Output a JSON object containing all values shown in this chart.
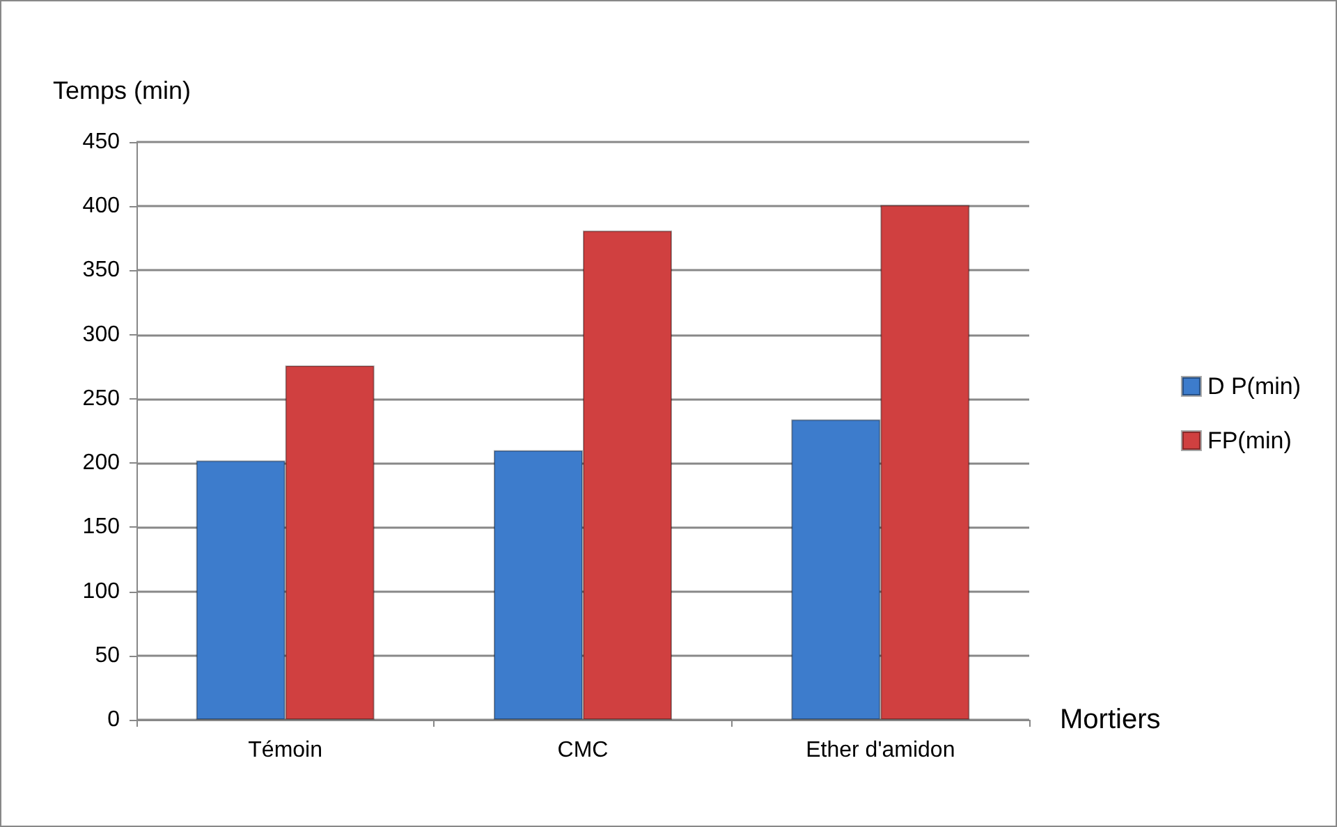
{
  "chart_data": {
    "type": "bar",
    "ylabel": "Temps (min)",
    "xlabel": "Mortiers",
    "categories": [
      "Témoin",
      "CMC",
      "Ether d'amidon"
    ],
    "series": [
      {
        "name": "D P(min)",
        "color": "#3d7ccc",
        "values": [
          202,
          210,
          234
        ]
      },
      {
        "name": "FP(min)",
        "color": "#d04040",
        "values": [
          276,
          381,
          401
        ]
      }
    ],
    "ylim": [
      0,
      450
    ],
    "yticks": [
      0,
      50,
      100,
      150,
      200,
      250,
      300,
      350,
      400,
      450
    ],
    "grid": "y",
    "legend": "right"
  }
}
